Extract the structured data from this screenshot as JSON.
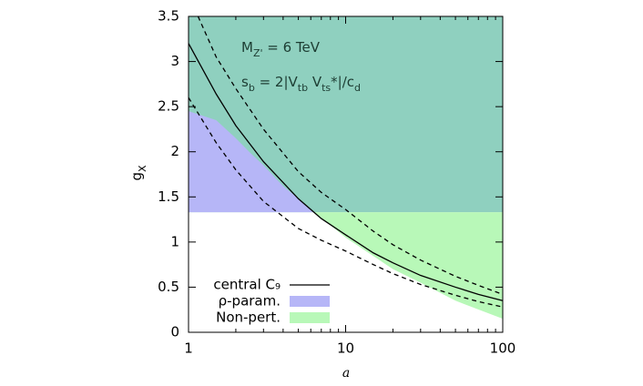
{
  "chart_data": {
    "type": "line",
    "xlabel": "a",
    "ylabel": [
      {
        "text": "g"
      },
      {
        "text": "X",
        "sub": true
      }
    ],
    "annotations": [
      [
        {
          "text": "M"
        },
        {
          "text": "Z'",
          "sub": true
        },
        {
          "text": " = 6 TeV"
        }
      ],
      [
        {
          "text": "s"
        },
        {
          "text": "b",
          "sub": true
        },
        {
          "text": " = 2|V"
        },
        {
          "text": "tb",
          "sub": true
        },
        {
          "text": " V"
        },
        {
          "text": "ts",
          "sub": true
        },
        {
          "text": "*|/c"
        },
        {
          "text": "d",
          "sub": true
        }
      ]
    ],
    "xlog": true,
    "xlim": [
      1,
      100
    ],
    "xticks": [
      1,
      10,
      100
    ],
    "xminorticks": [
      2,
      3,
      4,
      5,
      6,
      7,
      8,
      9,
      20,
      30,
      40,
      50,
      60,
      70,
      80,
      90
    ],
    "ylim": [
      0,
      3.5
    ],
    "yticks": [
      0,
      0.5,
      1,
      1.5,
      2,
      2.5,
      3,
      3.5
    ],
    "legend": "lower-left",
    "series": [
      {
        "name": "central C₉",
        "type": "line",
        "color": "#000000",
        "dash": false,
        "x": [
          1,
          1.5,
          2,
          3,
          5,
          7,
          10,
          15,
          20,
          30,
          50,
          70,
          100
        ],
        "values": [
          3.2,
          2.64,
          2.29,
          1.89,
          1.48,
          1.26,
          1.08,
          0.88,
          0.77,
          0.63,
          0.5,
          0.42,
          0.35
        ]
      },
      {
        "type": "line",
        "color": "#000000",
        "dash": true,
        "x": [
          1.15,
          1.5,
          2,
          3,
          5,
          7,
          10,
          15,
          20,
          30,
          50,
          70,
          100
        ],
        "values": [
          3.5,
          3.05,
          2.7,
          2.25,
          1.78,
          1.55,
          1.36,
          1.12,
          0.97,
          0.8,
          0.62,
          0.52,
          0.42
        ]
      },
      {
        "type": "line",
        "color": "#000000",
        "dash": true,
        "x": [
          1,
          1.5,
          2,
          3,
          5,
          7,
          10,
          15,
          20,
          30,
          50,
          70,
          100
        ],
        "values": [
          2.6,
          2.1,
          1.8,
          1.45,
          1.15,
          1.02,
          0.9,
          0.75,
          0.65,
          0.53,
          0.41,
          0.34,
          0.28
        ]
      },
      {
        "type": "area",
        "color": "#8fd0bf",
        "x": [
          1,
          100
        ],
        "values": [
          3.5,
          3.5
        ],
        "lower": [
          1.33,
          1.33
        ]
      },
      {
        "name": "ρ-param.",
        "type": "area",
        "color": "#b6b6f7",
        "x": [
          1,
          1.5,
          2,
          2.5,
          3,
          4,
          5,
          6,
          6.3
        ],
        "values": [
          2.45,
          2.35,
          2.15,
          1.98,
          1.85,
          1.62,
          1.48,
          1.36,
          1.33
        ],
        "lower": [
          1.33,
          1.33,
          1.33,
          1.33,
          1.33,
          1.33,
          1.33,
          1.33,
          1.33
        ]
      },
      {
        "name": "Non-pert.",
        "type": "area",
        "color": "#b8f8b8",
        "x": [
          6.3,
          10,
          20,
          30,
          50,
          100
        ],
        "values": [
          1.33,
          1.33,
          1.33,
          1.33,
          1.33,
          1.33
        ],
        "lower": [
          1.33,
          1.05,
          0.7,
          0.55,
          0.35,
          0.15
        ]
      }
    ]
  }
}
